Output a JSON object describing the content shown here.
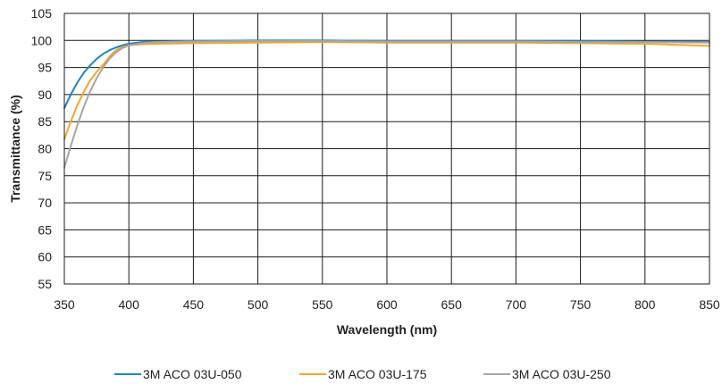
{
  "chart_data": {
    "type": "line",
    "title": "",
    "xlabel": "Wavelength (nm)",
    "ylabel": "Transmittance (%)",
    "xlim": [
      350,
      850
    ],
    "ylim": [
      55,
      105
    ],
    "xticks": [
      350,
      400,
      450,
      500,
      550,
      600,
      650,
      700,
      750,
      800,
      850
    ],
    "yticks": [
      55,
      60,
      65,
      70,
      75,
      80,
      85,
      90,
      95,
      100,
      105
    ],
    "grid": true,
    "legend_position": "bottom",
    "series": [
      {
        "name": "3M ACO 03U-050",
        "color": "#1e84c4",
        "x": [
          350,
          355,
          360,
          365,
          370,
          375,
          380,
          385,
          390,
          395,
          400,
          410,
          420,
          450,
          500,
          550,
          600,
          650,
          700,
          750,
          800,
          850
        ],
        "y": [
          87.5,
          90.0,
          92.2,
          94.0,
          95.4,
          96.6,
          97.5,
          98.2,
          98.7,
          99.1,
          99.4,
          99.7,
          99.8,
          99.9,
          100.0,
          100.0,
          99.9,
          99.9,
          99.9,
          99.9,
          99.8,
          99.7
        ]
      },
      {
        "name": "3M ACO 03U-175",
        "color": "#f5a623",
        "x": [
          350,
          355,
          360,
          365,
          370,
          375,
          380,
          385,
          390,
          395,
          400,
          410,
          420,
          450,
          500,
          550,
          600,
          650,
          700,
          750,
          800,
          850
        ],
        "y": [
          81.8,
          85.0,
          88.0,
          90.5,
          92.6,
          94.2,
          95.5,
          97.0,
          98.2,
          98.8,
          99.1,
          99.3,
          99.4,
          99.5,
          99.6,
          99.7,
          99.6,
          99.6,
          99.6,
          99.5,
          99.4,
          99.0
        ]
      },
      {
        "name": "3M ACO 03U-250",
        "color": "#a6a6a6",
        "x": [
          350,
          355,
          360,
          365,
          370,
          375,
          380,
          385,
          390,
          395,
          400,
          410,
          420,
          450,
          500,
          550,
          600,
          650,
          700,
          750,
          800,
          850
        ],
        "y": [
          76.5,
          80.5,
          84.3,
          87.7,
          90.6,
          93.0,
          95.0,
          96.6,
          97.8,
          98.6,
          99.1,
          99.5,
          99.7,
          99.8,
          99.9,
          99.9,
          99.8,
          99.8,
          99.8,
          99.7,
          99.7,
          99.6
        ]
      }
    ]
  }
}
